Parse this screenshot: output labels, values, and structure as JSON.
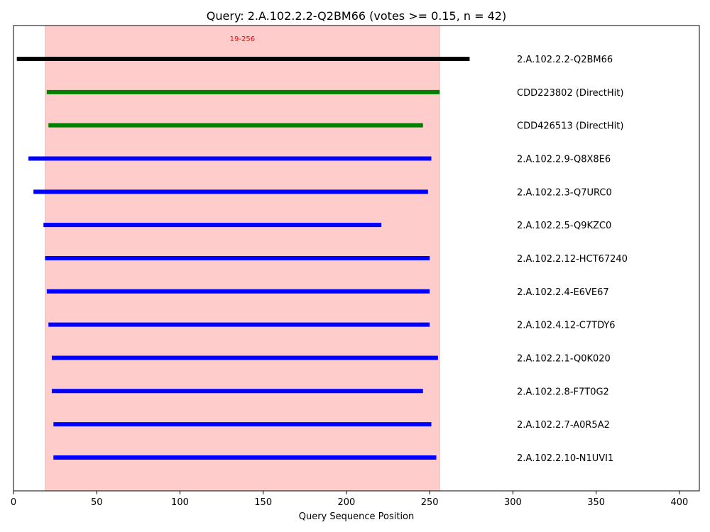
{
  "chart_data": {
    "type": "bar",
    "orientation": "horizontal-segments",
    "title": "Query: 2.A.102.2.2-Q2BM66 (votes >= 0.15, n = 42)",
    "xlabel": "Query Sequence Position",
    "ylabel": "",
    "xlim": [
      0,
      412
    ],
    "xticks": [
      0,
      50,
      100,
      150,
      200,
      250,
      300,
      350,
      400
    ],
    "grid": false,
    "highlight_region": {
      "start": 19,
      "end": 256,
      "label": "19-256",
      "color": "#ffcccc"
    },
    "series": [
      {
        "label": "2.A.102.2.2-Q2BM66",
        "start": 2,
        "end": 274,
        "color": "#000000"
      },
      {
        "label": "CDD223802 (DirectHit)",
        "start": 20,
        "end": 256,
        "color": "#008000"
      },
      {
        "label": "CDD426513 (DirectHit)",
        "start": 21,
        "end": 246,
        "color": "#008000"
      },
      {
        "label": "2.A.102.2.9-Q8X8E6",
        "start": 9,
        "end": 251,
        "color": "#0000ff"
      },
      {
        "label": "2.A.102.2.3-Q7URC0",
        "start": 12,
        "end": 249,
        "color": "#0000ff"
      },
      {
        "label": "2.A.102.2.5-Q9KZC0",
        "start": 18,
        "end": 221,
        "color": "#0000ff"
      },
      {
        "label": "2.A.102.2.12-HCT67240",
        "start": 19,
        "end": 250,
        "color": "#0000ff"
      },
      {
        "label": "2.A.102.2.4-E6VE67",
        "start": 20,
        "end": 250,
        "color": "#0000ff"
      },
      {
        "label": "2.A.102.4.12-C7TDY6",
        "start": 21,
        "end": 250,
        "color": "#0000ff"
      },
      {
        "label": "2.A.102.2.1-Q0K020",
        "start": 23,
        "end": 255,
        "color": "#0000ff"
      },
      {
        "label": "2.A.102.2.8-F7T0G2",
        "start": 23,
        "end": 246,
        "color": "#0000ff"
      },
      {
        "label": "2.A.102.2.7-A0R5A2",
        "start": 24,
        "end": 251,
        "color": "#0000ff"
      },
      {
        "label": "2.A.102.2.10-N1UVI1",
        "start": 24,
        "end": 254,
        "color": "#0000ff"
      }
    ]
  }
}
